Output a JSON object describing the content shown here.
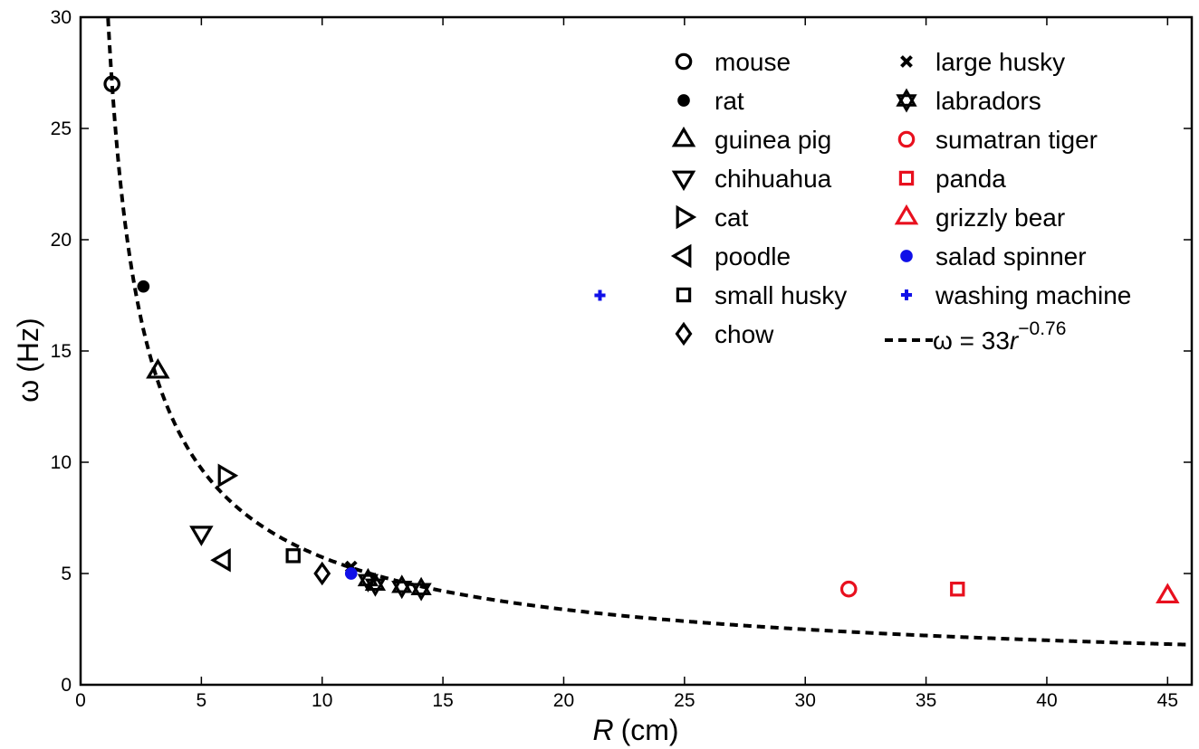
{
  "chart_data": {
    "type": "scatter",
    "title": "",
    "xlabel_var": "R",
    "xlabel_unit": "(cm)",
    "ylabel_var": "ω",
    "ylabel_unit": "(Hz)",
    "xlim": [
      0,
      46
    ],
    "ylim": [
      0,
      30
    ],
    "x_ticks": [
      0,
      5,
      10,
      15,
      20,
      25,
      30,
      35,
      40,
      45
    ],
    "y_ticks": [
      0,
      5,
      10,
      15,
      20,
      25,
      30
    ],
    "grid": false,
    "legend_position": "top-right",
    "series": [
      {
        "name": "mouse",
        "marker": "circle-open",
        "color": "#000000",
        "points": [
          {
            "x": 1.3,
            "y": 27.0
          }
        ]
      },
      {
        "name": "rat",
        "marker": "dot",
        "color": "#000000",
        "points": [
          {
            "x": 2.6,
            "y": 17.9
          }
        ]
      },
      {
        "name": "guinea pig",
        "marker": "triangle-up",
        "color": "#000000",
        "points": [
          {
            "x": 3.2,
            "y": 14.1
          }
        ]
      },
      {
        "name": "chihuahua",
        "marker": "triangle-down",
        "color": "#000000",
        "points": [
          {
            "x": 5.0,
            "y": 6.8
          }
        ]
      },
      {
        "name": "cat",
        "marker": "triangle-right",
        "color": "#000000",
        "points": [
          {
            "x": 6.0,
            "y": 9.4
          }
        ]
      },
      {
        "name": "poodle",
        "marker": "triangle-left",
        "color": "#000000",
        "points": [
          {
            "x": 5.9,
            "y": 5.6
          }
        ]
      },
      {
        "name": "small husky",
        "marker": "square-open",
        "color": "#000000",
        "points": [
          {
            "x": 8.8,
            "y": 5.8
          }
        ]
      },
      {
        "name": "chow",
        "marker": "diamond-open",
        "color": "#000000",
        "points": [
          {
            "x": 10.0,
            "y": 5.0
          }
        ]
      },
      {
        "name": "large husky",
        "marker": "x",
        "color": "#000000",
        "points": [
          {
            "x": 11.2,
            "y": 5.3
          }
        ]
      },
      {
        "name": "labradors",
        "marker": "hexagram",
        "color": "#000000",
        "points": [
          {
            "x": 11.9,
            "y": 4.7
          },
          {
            "x": 12.2,
            "y": 4.5
          },
          {
            "x": 13.3,
            "y": 4.4
          },
          {
            "x": 14.1,
            "y": 4.3
          }
        ]
      },
      {
        "name": "sumatran tiger",
        "marker": "circle-open",
        "color": "#e8101e",
        "points": [
          {
            "x": 31.8,
            "y": 4.3
          }
        ]
      },
      {
        "name": "panda",
        "marker": "square-open",
        "color": "#e8101e",
        "points": [
          {
            "x": 36.3,
            "y": 4.3
          }
        ]
      },
      {
        "name": "grizzly bear",
        "marker": "triangle-up",
        "color": "#e8101e",
        "points": [
          {
            "x": 45.0,
            "y": 4.0
          }
        ]
      },
      {
        "name": "salad spinner",
        "marker": "dot",
        "color": "#1010e8",
        "points": [
          {
            "x": 11.2,
            "y": 5.0
          }
        ]
      },
      {
        "name": "washing machine",
        "marker": "plus",
        "color": "#1010e8",
        "points": [
          {
            "x": 21.5,
            "y": 17.5
          }
        ]
      }
    ],
    "fit": {
      "label_lhs": "ω = 33",
      "label_var": "r",
      "label_exp": "−0.76",
      "coefficient": 33,
      "exponent": -0.76,
      "style": "dashed",
      "color": "#000000"
    }
  }
}
